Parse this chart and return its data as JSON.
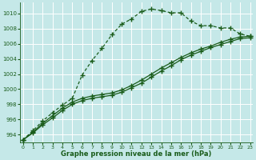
{
  "xlabel": "Graphe pression niveau de la mer (hPa)",
  "bg_color": "#c5e8e8",
  "grid_color": "#ffffff",
  "line_color": "#1a5c1a",
  "ylim": [
    993.0,
    1011.5
  ],
  "xlim": [
    -0.3,
    23.3
  ],
  "yticks": [
    994,
    996,
    998,
    1000,
    1002,
    1004,
    1006,
    1008,
    1010
  ],
  "xticks": [
    0,
    1,
    2,
    3,
    4,
    5,
    6,
    7,
    8,
    9,
    10,
    11,
    12,
    13,
    14,
    15,
    16,
    17,
    18,
    19,
    20,
    21,
    22,
    23
  ],
  "line1_x": [
    0,
    1,
    2,
    3,
    4,
    5,
    6,
    7,
    8,
    9,
    10,
    11,
    12,
    13,
    14,
    15,
    16,
    17,
    18,
    19,
    20,
    21,
    22,
    23
  ],
  "line1_y": [
    993.3,
    994.5,
    995.8,
    996.9,
    997.9,
    998.8,
    1001.9,
    1003.8,
    1005.4,
    1007.2,
    1008.6,
    1009.3,
    1010.3,
    1010.6,
    1010.4,
    1010.1,
    1010.1,
    1009.0,
    1008.4,
    1008.4,
    1008.1,
    1008.1,
    1007.3,
    1007.0
  ],
  "line2_x": [
    0,
    1,
    2,
    3,
    4,
    5,
    6,
    7,
    8,
    9,
    10,
    11,
    12,
    13,
    14,
    15,
    16,
    17,
    18,
    19,
    20,
    21,
    22,
    23
  ],
  "line2_y": [
    993.3,
    994.3,
    995.5,
    996.5,
    997.5,
    998.3,
    998.8,
    999.1,
    999.3,
    999.5,
    999.9,
    1000.5,
    1001.2,
    1002.0,
    1002.8,
    1003.5,
    1004.2,
    1004.8,
    1005.3,
    1005.7,
    1006.2,
    1006.6,
    1006.9,
    1007.0
  ],
  "line3_x": [
    0,
    1,
    2,
    3,
    4,
    5,
    6,
    7,
    8,
    9,
    10,
    11,
    12,
    13,
    14,
    15,
    16,
    17,
    18,
    19,
    20,
    21,
    22,
    23
  ],
  "line3_y": [
    993.3,
    994.2,
    995.3,
    996.2,
    997.2,
    998.0,
    998.5,
    998.8,
    999.0,
    999.2,
    999.6,
    1000.2,
    1000.8,
    1001.6,
    1002.4,
    1003.1,
    1003.9,
    1004.5,
    1005.0,
    1005.5,
    1005.9,
    1006.3,
    1006.7,
    1006.8
  ]
}
